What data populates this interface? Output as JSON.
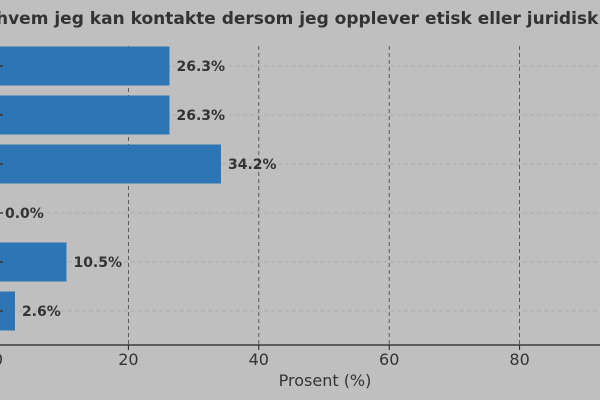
{
  "chart_data": {
    "type": "bar",
    "orientation": "horizontal",
    "title": "hvem jeg kan kontakte dersom jeg opplever etisk eller juridisk",
    "xlabel": "Prosent (%)",
    "ylabel": "",
    "xlim": [
      0,
      100
    ],
    "xticks": [
      0,
      20,
      40,
      60,
      80
    ],
    "xtick_labels": [
      "0",
      "20",
      "40",
      "60",
      "80"
    ],
    "values": [
      26.3,
      26.3,
      34.2,
      0.0,
      10.5,
      2.6
    ],
    "value_labels": [
      "26.3%",
      "26.3%",
      "34.2%",
      "0.0%",
      "10.5%",
      "2.6%"
    ],
    "grid": true,
    "legend": "none"
  },
  "colors": {
    "background": "#bfbfbf",
    "bar": "#2e75b6",
    "text": "#333333",
    "grid": "#8c8c8c"
  }
}
